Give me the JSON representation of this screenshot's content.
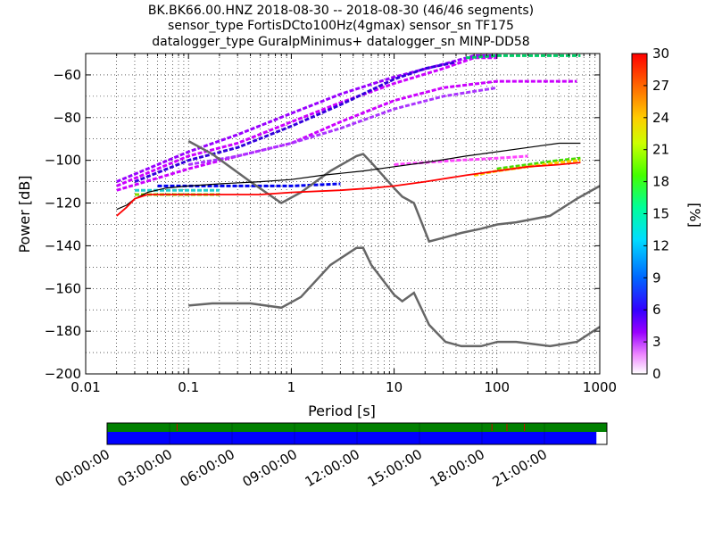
{
  "chart_data": [
    {
      "type": "heatmap",
      "title_lines": [
        "BK.BK66.00.HNZ   2018-08-30 -- 2018-08-30  (46/46 segments)",
        "sensor_type FortisDCto100Hz(4gmax) sensor_sn TF175",
        "datalogger_type GuralpMinimus+ datalogger_sn MINP-DD58"
      ],
      "xlabel": "Period [s]",
      "ylabel": "Power [dB]",
      "x_scale": "log",
      "xlim": [
        0.01,
        1000
      ],
      "ylim": [
        -200,
        -50
      ],
      "x_ticks": [
        0.01,
        0.1,
        1,
        10,
        100,
        1000
      ],
      "x_tick_labels": [
        "0.01",
        "0.1",
        "1",
        "10",
        "100",
        "1000"
      ],
      "y_ticks": [
        -200,
        -180,
        -160,
        -140,
        -120,
        -100,
        -80,
        -60
      ],
      "y_tick_labels": [
        "−200",
        "−180",
        "−160",
        "−140",
        "−120",
        "−100",
        "−80",
        "−60"
      ],
      "grid": true,
      "colorbar": {
        "label": "[%]",
        "range": [
          0,
          30
        ],
        "ticks": [
          "0",
          "3",
          "6",
          "9",
          "12",
          "15",
          "18",
          "21",
          "24",
          "27",
          "30"
        ]
      },
      "series": [
        {
          "name": "NHNM",
          "color": "#666666",
          "x": [
            0.1,
            0.17,
            0.4,
            0.8,
            1.24,
            2.4,
            4.3,
            5,
            6,
            10,
            12,
            15.6,
            21.9,
            31.6,
            45,
            70,
            101,
            154,
            328,
            600,
            1000
          ],
          "y": [
            -91,
            -97,
            -110,
            -120,
            -115,
            -105,
            -98,
            -97,
            -101,
            -113,
            -117,
            -120,
            -138,
            -136,
            -134,
            -132,
            -130,
            -129,
            -126,
            -118,
            -112
          ]
        },
        {
          "name": "NLNM",
          "color": "#666666",
          "x": [
            0.1,
            0.17,
            0.4,
            0.8,
            1.24,
            2.4,
            4.3,
            5,
            6,
            10,
            12,
            15.6,
            21.9,
            31.6,
            45,
            70,
            101,
            154,
            328,
            600,
            1000
          ],
          "y": [
            -168,
            -167,
            -167,
            -169,
            -164,
            -149,
            -141,
            -141,
            -149,
            -163,
            -166,
            -162,
            -177,
            -185,
            -187,
            -187,
            -185,
            -185,
            -187,
            -185,
            -178
          ]
        },
        {
          "name": "mean",
          "color": "#000000",
          "x": [
            0.02,
            0.025,
            0.03,
            0.04,
            0.06,
            0.1,
            0.2,
            0.5,
            1,
            2,
            5,
            10,
            20,
            50,
            100,
            200,
            400,
            650
          ],
          "y": [
            -123,
            -121,
            -118,
            -115,
            -113,
            -112,
            -111,
            -110,
            -109,
            -107,
            -105,
            -103,
            -101,
            -98,
            -96,
            -94,
            -92,
            -92
          ]
        },
        {
          "name": "mode",
          "color": "#ff0000",
          "x": [
            0.02,
            0.025,
            0.03,
            0.04,
            0.1,
            0.5,
            1,
            3,
            6,
            10,
            20,
            50,
            100,
            200,
            400,
            650
          ],
          "y": [
            -126,
            -122,
            -118,
            -116,
            -116,
            -116,
            -115,
            -114,
            -113,
            -112,
            -110,
            -107,
            -105,
            -103,
            -102,
            -101
          ]
        }
      ],
      "pdf_bands": [
        {
          "name": "band-1",
          "color": "#cc00ff",
          "x": [
            0.02,
            0.05,
            0.1,
            0.3,
            1,
            3,
            10,
            30,
            60,
            100
          ],
          "y": [
            -112,
            -104,
            -98,
            -92,
            -82,
            -73,
            -64,
            -57,
            -52,
            -52
          ]
        },
        {
          "name": "band-2",
          "color": "#9900ff",
          "x": [
            0.02,
            0.05,
            0.1,
            0.3,
            1,
            3,
            10,
            30,
            60,
            100
          ],
          "y": [
            -110,
            -102,
            -96,
            -88,
            -78,
            -69,
            -61,
            -55,
            -51,
            -51
          ]
        },
        {
          "name": "band-3",
          "color": "#3300dd",
          "x": [
            0.03,
            0.1,
            0.3,
            1,
            3,
            10,
            20,
            40
          ],
          "y": [
            -110,
            -100,
            -94,
            -84,
            -74,
            -62,
            -57,
            -54
          ]
        },
        {
          "name": "band-4",
          "color": "#cc00ff",
          "x": [
            0.02,
            0.1,
            0.3,
            1,
            3,
            10,
            30,
            100,
            300,
            600
          ],
          "y": [
            -114,
            -104,
            -98,
            -92,
            -82,
            -72,
            -66,
            -63,
            -63,
            -63
          ]
        },
        {
          "name": "band-5",
          "color": "#aa33ff",
          "x": [
            0.1,
            0.3,
            1,
            3,
            10,
            30,
            100
          ],
          "y": [
            -102,
            -98,
            -92,
            -85,
            -76,
            -70,
            -66
          ]
        },
        {
          "name": "band-6",
          "color": "#00cc66",
          "x": [
            50,
            100,
            200,
            400,
            650
          ],
          "y": [
            -52,
            -51,
            -51,
            -51,
            -51
          ]
        },
        {
          "name": "band-7",
          "color": "#44dd00",
          "x": [
            100,
            200,
            400,
            650
          ],
          "y": [
            -104,
            -102,
            -100,
            -99
          ]
        },
        {
          "name": "band-8",
          "color": "#ffcc00",
          "x": [
            60,
            100,
            200,
            400,
            650
          ],
          "y": [
            -107,
            -105,
            -103,
            -101,
            -100
          ]
        },
        {
          "name": "band-9",
          "color": "#22cccc",
          "x": [
            0.03,
            0.05,
            0.1,
            0.2
          ],
          "y": [
            -114,
            -114,
            -114,
            -114
          ]
        },
        {
          "name": "band-10",
          "color": "#88dd00",
          "x": [
            0.03,
            0.05,
            0.1,
            0.2
          ],
          "y": [
            -116,
            -116,
            -116,
            -116
          ]
        },
        {
          "name": "band-11",
          "color": "#0000ee",
          "x": [
            0.05,
            0.1,
            0.3,
            1,
            3
          ],
          "y": [
            -112,
            -112,
            -112,
            -112,
            -111
          ]
        },
        {
          "name": "band-12",
          "color": "#ff44ff",
          "x": [
            10,
            20,
            40,
            100,
            200
          ],
          "y": [
            -102,
            -101,
            -100,
            -99,
            -98
          ]
        }
      ]
    },
    {
      "type": "timeline",
      "x_tick_labels": [
        "00:00:00",
        "03:00:00",
        "06:00:00",
        "09:00:00",
        "12:00:00",
        "15:00:00",
        "18:00:00",
        "21:00:00"
      ],
      "bar_colors": {
        "top": "#008000",
        "bottom": "#0000ff",
        "marks": "#cc0000"
      },
      "coverage_fraction": 0.979
    }
  ]
}
